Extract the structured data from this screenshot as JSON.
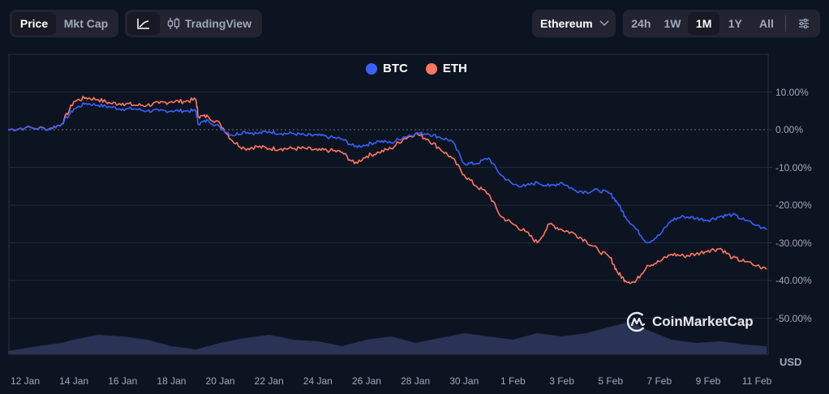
{
  "toolbar": {
    "type_tabs": [
      {
        "label": "Price",
        "active": true
      },
      {
        "label": "Mkt Cap",
        "active": false
      }
    ],
    "view_tabs": [
      {
        "icon": "line-chart-icon",
        "active": true
      },
      {
        "icon": "candlestick-icon",
        "label": "TradingView",
        "active": false
      }
    ],
    "compare_dropdown": {
      "selected": "Ethereum",
      "icon": "chevron-down-icon"
    },
    "range_tabs": [
      {
        "label": "24h",
        "active": false
      },
      {
        "label": "1W",
        "active": false
      },
      {
        "label": "1M",
        "active": true
      },
      {
        "label": "1Y",
        "active": false
      },
      {
        "label": "All",
        "active": false
      }
    ],
    "settings_icon": "sliders-icon"
  },
  "legend": [
    {
      "label": "BTC",
      "color": "#3861fb"
    },
    {
      "label": "ETH",
      "color": "#ff775f"
    }
  ],
  "watermark": "CoinMarketCap",
  "currency_label": "USD",
  "colors": {
    "background": "#0d1421",
    "btc": "#3861fb",
    "eth": "#ff775f",
    "volume": "#2a3256",
    "grid": "#222a38"
  },
  "chart_data": {
    "type": "line",
    "title": "",
    "xlabel": "",
    "ylabel": "",
    "y_unit": "%",
    "ylim": [
      -52,
      12
    ],
    "y_ticks": [
      "10.00%",
      "0.00%",
      "-10.00%",
      "-20.00%",
      "-30.00%",
      "-40.00%",
      "-50.00%"
    ],
    "x_ticks": [
      "12 Jan",
      "14 Jan",
      "16 Jan",
      "18 Jan",
      "20 Jan",
      "22 Jan",
      "24 Jan",
      "26 Jan",
      "28 Jan",
      "30 Jan",
      "1 Feb",
      "3 Feb",
      "5 Feb",
      "7 Feb",
      "9 Feb",
      "11 Feb"
    ],
    "grid": true,
    "legend_position": "top-center",
    "x": [
      11.3,
      12,
      13,
      13.5,
      14,
      14.5,
      15,
      15.5,
      16,
      16.5,
      17,
      17.5,
      18,
      18.5,
      19,
      19.1,
      19.5,
      20,
      20.5,
      21,
      21.5,
      22,
      22.5,
      23,
      23.5,
      24,
      24.5,
      25,
      25.5,
      26,
      26.5,
      27,
      27.5,
      28,
      28.5,
      29,
      29.5,
      30,
      30.5,
      31,
      31.5,
      32,
      32.5,
      33,
      33.5,
      34,
      34.5,
      35,
      35.5,
      36,
      36.3,
      36.6,
      37,
      37.5,
      38,
      38.5,
      39,
      39.5,
      40,
      40.5,
      41,
      41.5,
      42.4
    ],
    "x_note": "x = day index where 12 = 12 Jan, 32 = 1 Feb, 42 = 11 Feb",
    "series": [
      {
        "name": "BTC",
        "color": "#3861fb",
        "values": [
          0,
          0.5,
          0.2,
          1.5,
          5.5,
          7,
          6.5,
          6,
          5.5,
          5.5,
          5,
          5,
          5,
          5,
          5,
          1.5,
          2.5,
          0.5,
          -1.5,
          -0.5,
          -1,
          -0.5,
          -1,
          -1,
          -1.5,
          -1.5,
          -2,
          -2.5,
          -4.5,
          -4,
          -3,
          -3.5,
          -2,
          -1,
          -1,
          -2,
          -3,
          -9,
          -9,
          -7.5,
          -12,
          -14.5,
          -15,
          -14,
          -15,
          -14,
          -16,
          -16.5,
          -16,
          -17,
          -19.5,
          -23,
          -26,
          -30,
          -28,
          -24,
          -23,
          -23.5,
          -24,
          -23,
          -22.5,
          -24,
          -26.5
        ]
      },
      {
        "name": "ETH",
        "color": "#ff775f",
        "values": [
          0,
          0.5,
          0.3,
          1.5,
          7.5,
          8.5,
          8,
          7,
          7,
          6.5,
          6.5,
          7,
          7.5,
          7.5,
          8,
          3.5,
          3.5,
          1.5,
          -3,
          -5,
          -4.5,
          -5,
          -5,
          -5,
          -5,
          -5.5,
          -5.5,
          -6,
          -9,
          -7,
          -6,
          -5,
          -2.5,
          -1,
          -2.5,
          -5,
          -7.5,
          -12,
          -15,
          -17,
          -23,
          -25,
          -27,
          -30,
          -25,
          -26.5,
          -27.5,
          -29.5,
          -32,
          -34,
          -38,
          -40,
          -40.5,
          -36,
          -35,
          -33,
          -33.5,
          -33,
          -32,
          -31.5,
          -34,
          -35,
          -37
        ]
      }
    ],
    "volume": {
      "note": "relative volume bars at chart bottom (0-1 scale)",
      "x": [
        11.3,
        12.5,
        13.5,
        14,
        15,
        16,
        17,
        18,
        19,
        20,
        21,
        22,
        23,
        24,
        25,
        26,
        27,
        28,
        29,
        30,
        31,
        32,
        33,
        34,
        35,
        36,
        36.8,
        37.5,
        38.5,
        39.5,
        40.5,
        41.5,
        42.4
      ],
      "values": [
        0.1,
        0.25,
        0.35,
        0.45,
        0.6,
        0.55,
        0.45,
        0.25,
        0.15,
        0.35,
        0.5,
        0.6,
        0.45,
        0.4,
        0.25,
        0.45,
        0.55,
        0.35,
        0.5,
        0.65,
        0.55,
        0.45,
        0.65,
        0.55,
        0.65,
        0.85,
        1.0,
        0.75,
        0.45,
        0.35,
        0.4,
        0.3,
        0.25
      ]
    }
  }
}
